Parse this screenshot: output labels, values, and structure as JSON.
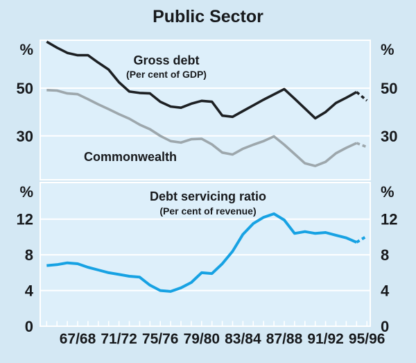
{
  "page": {
    "title": "Public Sector",
    "background_color": "#d4e8f4",
    "plot_background_color": "#ddeffa",
    "gridline_color": "#ffffff",
    "text_color": "#17191c"
  },
  "x_axis": {
    "tick_labels": [
      "67/68",
      "71/72",
      "75/76",
      "79/80",
      "83/84",
      "87/88",
      "91/92",
      "95/96"
    ],
    "label_every_n_years": 4,
    "first_label_index": 3
  },
  "chart_data": [
    {
      "type": "line",
      "panel": "top",
      "unit_label": "%",
      "grid": true,
      "legend_position": "in-plot-annotations",
      "ylim": [
        11.6,
        70.1
      ],
      "yticks": [
        {
          "value": 50,
          "label": "50"
        },
        {
          "value": 30,
          "label": "30"
        }
      ],
      "categories": [
        "64/65",
        "65/66",
        "66/67",
        "67/68",
        "68/69",
        "69/70",
        "70/71",
        "71/72",
        "72/73",
        "73/74",
        "74/75",
        "75/76",
        "76/77",
        "77/78",
        "78/79",
        "79/80",
        "80/81",
        "81/82",
        "82/83",
        "83/84",
        "84/85",
        "85/86",
        "86/87",
        "87/88",
        "88/89",
        "89/90",
        "90/91",
        "91/92",
        "92/93",
        "93/94",
        "94/95",
        "95/96"
      ],
      "series": [
        {
          "name": "Gross debt",
          "subtitle": "(Per cent of GDP)",
          "color": "#1d2023",
          "dashed_from_index": 30,
          "values": [
            69.5,
            67.0,
            64.8,
            63.8,
            63.8,
            60.7,
            57.8,
            52.5,
            48.6,
            48.0,
            47.8,
            44.3,
            42.3,
            41.8,
            43.5,
            44.7,
            44.3,
            38.5,
            38.0,
            40.4,
            42.8,
            45.2,
            47.4,
            49.6,
            45.6,
            41.5,
            37.4,
            40.0,
            43.8,
            46.0,
            48.4,
            44.8
          ]
        },
        {
          "name": "Commonwealth",
          "subtitle": "",
          "color": "#9da7ac",
          "dashed_from_index": 30,
          "values": [
            49.2,
            49.0,
            47.8,
            47.5,
            45.4,
            43.2,
            41.2,
            39.1,
            37.2,
            34.7,
            32.8,
            30.0,
            27.8,
            27.2,
            28.6,
            28.8,
            26.4,
            23.0,
            22.2,
            24.6,
            26.3,
            27.8,
            29.8,
            26.3,
            22.4,
            18.5,
            17.4,
            19.1,
            22.7,
            25.0,
            27.0,
            25.3
          ]
        }
      ]
    },
    {
      "type": "line",
      "panel": "bottom",
      "unit_label": "%",
      "grid": true,
      "legend_position": "in-plot-annotations",
      "ylim": [
        0,
        16.1
      ],
      "yticks": [
        {
          "value": 12,
          "label": "12"
        },
        {
          "value": 8,
          "label": "8"
        },
        {
          "value": 4,
          "label": "4"
        },
        {
          "value": 0,
          "label": "0"
        }
      ],
      "categories": [
        "64/65",
        "65/66",
        "66/67",
        "67/68",
        "68/69",
        "69/70",
        "70/71",
        "71/72",
        "72/73",
        "73/74",
        "74/75",
        "75/76",
        "76/77",
        "77/78",
        "78/79",
        "79/80",
        "80/81",
        "81/82",
        "82/83",
        "83/84",
        "84/85",
        "85/86",
        "86/87",
        "87/88",
        "88/89",
        "89/90",
        "90/91",
        "91/92",
        "92/93",
        "93/94",
        "94/95",
        "95/96"
      ],
      "series": [
        {
          "name": "Debt servicing ratio",
          "subtitle": "(Per cent of revenue)",
          "color": "#17a2e3",
          "dashed_from_index": 30,
          "values": [
            6.8,
            6.9,
            7.1,
            7.0,
            6.6,
            6.3,
            6.0,
            5.8,
            5.6,
            5.5,
            4.6,
            4.0,
            3.9,
            4.3,
            4.9,
            6.0,
            5.9,
            7.0,
            8.4,
            10.3,
            11.5,
            12.2,
            12.6,
            11.9,
            10.4,
            10.6,
            10.4,
            10.5,
            10.2,
            9.9,
            9.4,
            10.1
          ]
        }
      ]
    }
  ]
}
